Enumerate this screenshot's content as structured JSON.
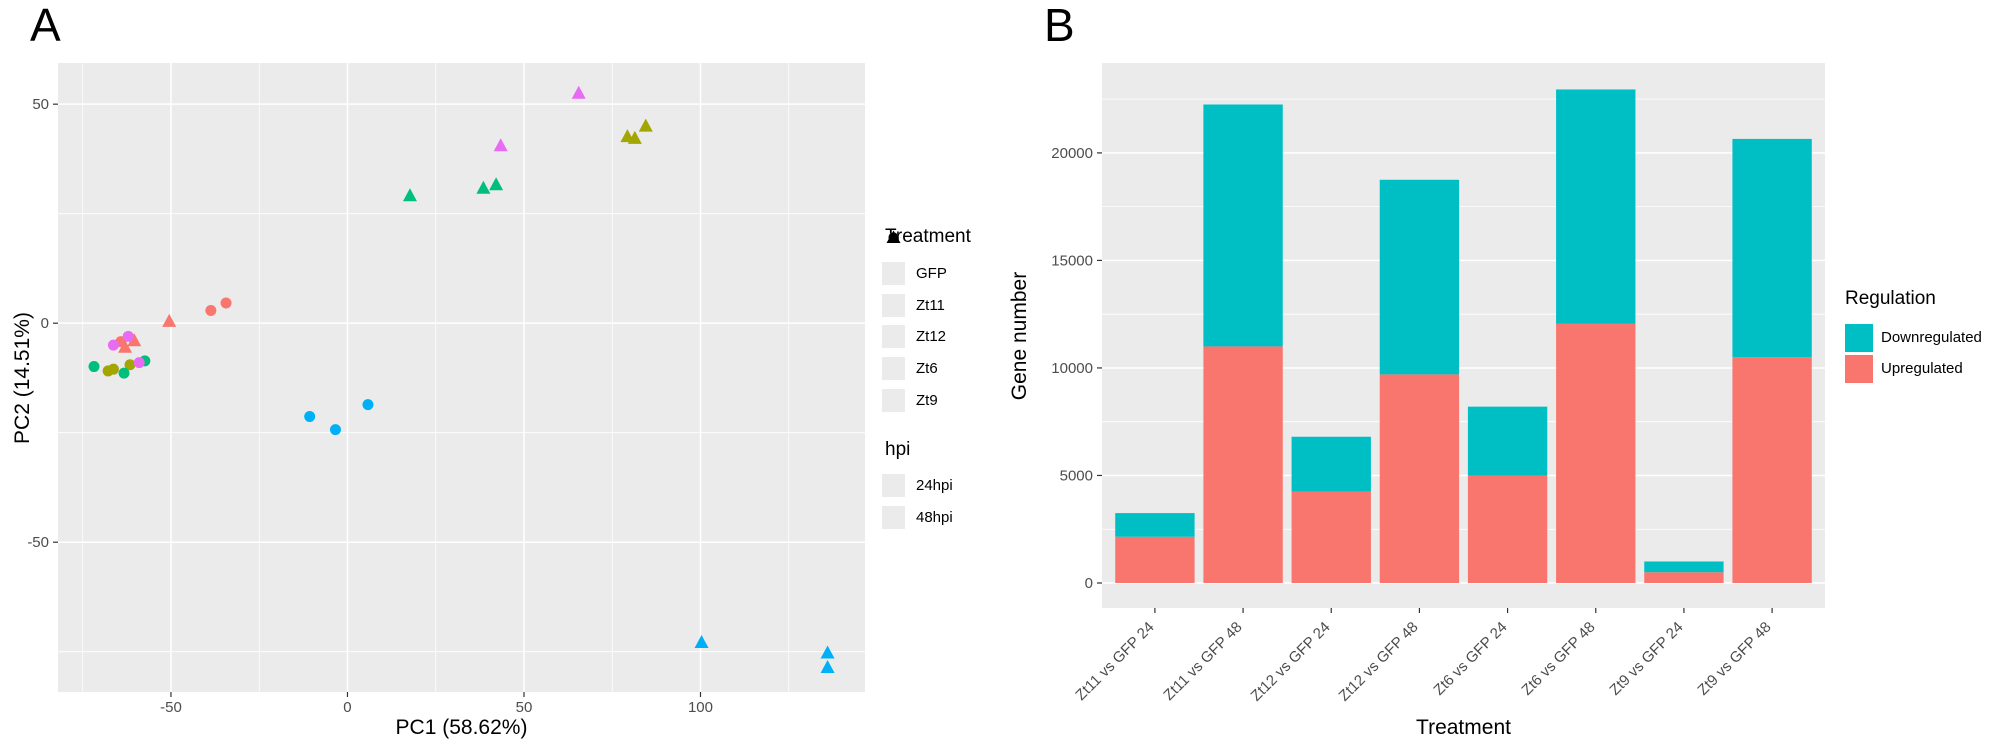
{
  "theme": {
    "plot_bg": "#EBEBEB",
    "grid": "#FFFFFF",
    "tick_text": "#4D4D4D",
    "axis_tick": "#333333",
    "text": "#000000"
  },
  "panel_a": {
    "label": "A",
    "x_axis_title": "PC1 (58.62%)",
    "y_axis_title": "PC2 (14.51%)",
    "legend_treatment": {
      "title": "Treatment",
      "items": [
        {
          "label": "GFP",
          "color": "#F8766D"
        },
        {
          "label": "Zt11",
          "color": "#A3A500"
        },
        {
          "label": "Zt12",
          "color": "#00BF7D"
        },
        {
          "label": "Zt6",
          "color": "#00B0F6"
        },
        {
          "label": "Zt9",
          "color": "#E76BF3"
        }
      ]
    },
    "legend_hpi": {
      "title": "hpi",
      "items": [
        {
          "label": "24hpi",
          "shape": "circle",
          "color": "#000000"
        },
        {
          "label": "48hpi",
          "shape": "triangle",
          "color": "#000000"
        }
      ]
    }
  },
  "panel_b": {
    "label": "B",
    "x_axis_title": "Treatment",
    "y_axis_title": "Gene number",
    "legend": {
      "title": "Regulation",
      "items": [
        {
          "label": "Downregulated",
          "color": "#00BFC4"
        },
        {
          "label": "Upregulated",
          "color": "#F8766D"
        }
      ]
    }
  },
  "chart_data": [
    {
      "panel": "A",
      "type": "scatter",
      "xlabel": "PC1 (58.62%)",
      "ylabel": "PC2 (14.51%)",
      "xlim": [
        -82,
        146.6
      ],
      "ylim": [
        -84.2,
        59.4
      ],
      "x_major_ticks": [
        -50,
        0,
        50,
        100
      ],
      "x_minor_ticks": [
        -75,
        -25,
        25,
        75,
        125
      ],
      "y_major_ticks": [
        50,
        0,
        -50
      ],
      "y_minor_ticks": [
        25,
        -25,
        -75
      ],
      "grid": true,
      "legend_position": "right",
      "shape_encoding": {
        "24hpi": "circle",
        "48hpi": "triangle"
      },
      "series": [
        {
          "name": "GFP",
          "color": "#F8766D",
          "points_24hpi": [
            [
              -38.7,
              2.9
            ],
            [
              -34.4,
              4.6
            ],
            [
              -64.2,
              -4.2
            ]
          ],
          "points_48hpi": [
            [
              -50.5,
              0.4
            ],
            [
              -60.4,
              -4.0
            ],
            [
              -63.0,
              -5.5
            ]
          ]
        },
        {
          "name": "Zt11",
          "color": "#A3A500",
          "points_24hpi": [
            [
              -67.8,
              -10.9
            ],
            [
              -66.3,
              -10.5
            ],
            [
              -61.6,
              -9.5
            ]
          ],
          "points_48hpi": [
            [
              79.3,
              42.6
            ],
            [
              81.4,
              42.2
            ],
            [
              84.5,
              45.0
            ]
          ]
        },
        {
          "name": "Zt12",
          "color": "#00BF7D",
          "points_24hpi": [
            [
              -71.8,
              -9.9
            ],
            [
              -63.3,
              -11.4
            ],
            [
              -57.4,
              -8.6
            ]
          ],
          "points_48hpi": [
            [
              17.7,
              29.1
            ],
            [
              38.5,
              30.8
            ],
            [
              42.1,
              31.6
            ]
          ]
        },
        {
          "name": "Zt6",
          "color": "#00B0F6",
          "points_24hpi": [
            [
              -10.7,
              -21.3
            ],
            [
              -3.4,
              -24.3
            ],
            [
              5.8,
              -18.6
            ]
          ],
          "points_48hpi": [
            [
              100.3,
              -72.9
            ],
            [
              136.0,
              -75.3
            ],
            [
              136.0,
              -78.6
            ]
          ]
        },
        {
          "name": "Zt9",
          "color": "#E76BF3",
          "points_24hpi": [
            [
              -66.3,
              -5.0
            ],
            [
              -62.1,
              -3.0
            ],
            [
              -59.0,
              -9.0
            ]
          ],
          "points_48hpi": [
            [
              65.5,
              52.5
            ],
            [
              43.4,
              40.5
            ]
          ]
        }
      ]
    },
    {
      "panel": "B",
      "type": "bar",
      "stacked": true,
      "xlabel": "Treatment",
      "ylabel": "Gene number",
      "categories": [
        "Zt11 vs GFP 24",
        "Zt11 vs GFP 48",
        "Zt12 vs GFP 24",
        "Zt12 vs GFP 48",
        "Zt6 vs GFP 24",
        "Zt6 vs GFP 48",
        "Zt9 vs GFP 24",
        "Zt9 vs GFP 48"
      ],
      "series": [
        {
          "name": "Downregulated",
          "color": "#00BFC4",
          "values": [
            1100,
            11250,
            2550,
            9050,
            3200,
            10900,
            500,
            10150
          ]
        },
        {
          "name": "Upregulated",
          "color": "#F8766D",
          "values": [
            2150,
            11000,
            4250,
            9700,
            5000,
            12050,
            500,
            10500
          ]
        }
      ],
      "totals": [
        3250,
        22250,
        6800,
        18750,
        8200,
        22950,
        1000,
        20650
      ],
      "ylim": [
        -1163,
        24180
      ],
      "y_major_ticks": [
        0,
        5000,
        10000,
        15000,
        20000
      ],
      "y_minor_ticks": [
        2500,
        7500,
        12500,
        17500,
        22500
      ],
      "grid": true,
      "legend_title": "Regulation",
      "legend_position": "right",
      "x_label_rotation": 45
    }
  ]
}
